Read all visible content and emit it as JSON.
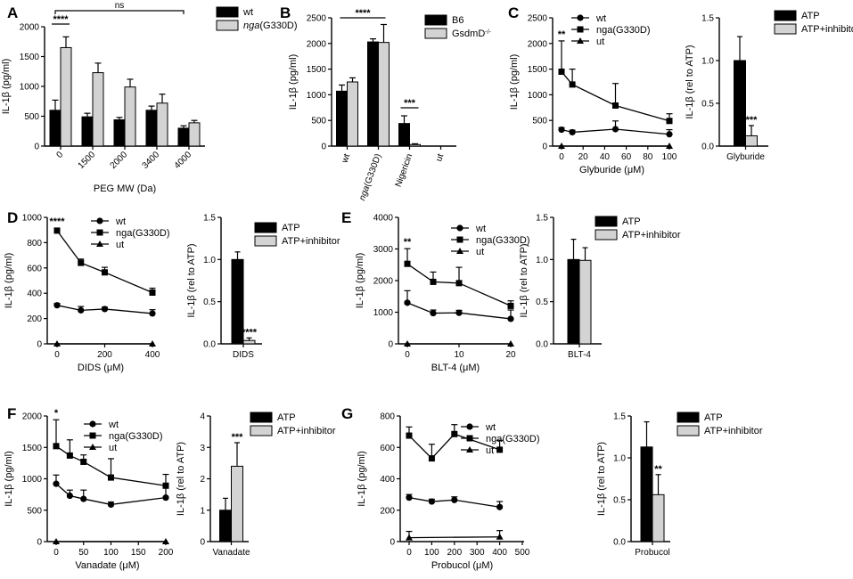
{
  "chart_data": [
    {
      "panel": "A",
      "type": "bar",
      "ylabel": "IL-1β (pg/ml)",
      "xlabel": "PEG MW (Da)",
      "ylim": [
        0,
        2000
      ],
      "yticks": [
        0,
        500,
        1000,
        1500,
        2000
      ],
      "categories": [
        "0",
        "1500",
        "2000",
        "3400",
        "4000"
      ],
      "series": [
        {
          "name": "wt",
          "color": "#000000",
          "values": [
            600,
            490,
            440,
            600,
            300
          ],
          "errors": [
            170,
            60,
            40,
            70,
            40
          ]
        },
        {
          "name": "nga(G330D)",
          "name_prefix": "nga",
          "name_suffix": "(G330D)",
          "color": "#d3d3d3",
          "values": [
            1650,
            1230,
            990,
            720,
            390
          ],
          "errors": [
            180,
            160,
            130,
            150,
            40
          ]
        }
      ],
      "annotations": [
        {
          "text": "****"
        },
        {
          "text": "ns"
        }
      ]
    },
    {
      "panel": "B",
      "type": "bar",
      "ylabel": "IL-1β (pg/ml)",
      "xlabel": "",
      "ylim": [
        0,
        2500
      ],
      "yticks": [
        0,
        500,
        1000,
        1500,
        2000,
        2500
      ],
      "categories": [
        "wt",
        "nga(G330D)",
        "Nigericin",
        "ut"
      ],
      "series": [
        {
          "name": "B6",
          "color": "#000000",
          "values": [
            1070,
            2030,
            440,
            0
          ],
          "errors": [
            120,
            60,
            150,
            0
          ]
        },
        {
          "name": "GsdmD-/-",
          "name_prefix": "GsdmD",
          "name_sup": "-/-",
          "color": "#d3d3d3",
          "values": [
            1250,
            2020,
            30,
            0
          ],
          "errors": [
            80,
            350,
            15,
            0
          ]
        }
      ],
      "annotations": [
        {
          "text": "****"
        },
        {
          "text": "***"
        }
      ]
    },
    {
      "panel": "C",
      "type": "line",
      "ylabel": "IL-1β (pg/ml)",
      "xlabel": "Glyburide (μM)",
      "xlim": [
        0,
        100
      ],
      "xticks": [
        0,
        20,
        40,
        60,
        80,
        100
      ],
      "ylim": [
        0,
        2500
      ],
      "yticks": [
        0,
        500,
        1000,
        1500,
        2000,
        2500
      ],
      "x": [
        0,
        10,
        50,
        100
      ],
      "series": [
        {
          "name": "wt",
          "marker": "circle",
          "values": [
            320,
            270,
            330,
            230
          ],
          "errors": [
            40,
            40,
            160,
            90
          ]
        },
        {
          "name": "nga(G330D)",
          "marker": "square",
          "values": [
            1450,
            1200,
            790,
            490
          ],
          "errors": [
            600,
            300,
            430,
            140
          ]
        },
        {
          "name": "ut",
          "marker": "triangle",
          "values": [
            0,
            null,
            null,
            0
          ],
          "errors": [
            0,
            0,
            0,
            0
          ]
        }
      ],
      "annotations": [
        {
          "text": "**"
        }
      ]
    },
    {
      "panel": "C-inset",
      "type": "bar",
      "ylabel": "IL-1β (rel to ATP)",
      "xlabel": "Glyburide",
      "ylim": [
        0,
        1.5
      ],
      "yticks": [
        0.0,
        0.5,
        1.0,
        1.5
      ],
      "series": [
        {
          "name": "ATP",
          "color": "#000000",
          "values": [
            1.0
          ],
          "errors": [
            0.28
          ]
        },
        {
          "name": "ATP+inhibitor",
          "color": "#d3d3d3",
          "values": [
            0.12
          ],
          "errors": [
            0.12
          ]
        }
      ],
      "annotations": [
        {
          "text": "***"
        }
      ]
    },
    {
      "panel": "D",
      "type": "line",
      "ylabel": "IL-1β (pg/ml)",
      "xlabel": "DIDS (μM)",
      "xlim": [
        0,
        400
      ],
      "xticks": [
        0,
        200,
        400
      ],
      "ylim": [
        0,
        1000
      ],
      "yticks": [
        0,
        200,
        400,
        600,
        800,
        1000
      ],
      "x": [
        0,
        100,
        200,
        400
      ],
      "series": [
        {
          "name": "wt",
          "marker": "circle",
          "values": [
            305,
            265,
            275,
            240
          ],
          "errors": [
            15,
            30,
            15,
            30
          ]
        },
        {
          "name": "nga(G330D)",
          "marker": "square",
          "values": [
            895,
            640,
            565,
            405
          ],
          "errors": [
            20,
            30,
            40,
            35
          ]
        },
        {
          "name": "ut",
          "marker": "triangle",
          "values": [
            0,
            null,
            null,
            0
          ],
          "errors": [
            0,
            0,
            0,
            0
          ]
        }
      ],
      "annotations": [
        {
          "text": "****"
        }
      ]
    },
    {
      "panel": "D-inset",
      "type": "bar",
      "ylabel": "IL-1β (rel to ATP)",
      "xlabel": "DIDS",
      "ylim": [
        0,
        1.5
      ],
      "yticks": [
        0.0,
        0.5,
        1.0,
        1.5
      ],
      "series": [
        {
          "name": "ATP",
          "color": "#000000",
          "values": [
            1.0
          ],
          "errors": [
            0.09
          ]
        },
        {
          "name": "ATP+inhibitor",
          "color": "#d3d3d3",
          "values": [
            0.04
          ],
          "errors": [
            0.03
          ]
        }
      ],
      "annotations": [
        {
          "text": "****"
        }
      ]
    },
    {
      "panel": "E",
      "type": "line",
      "ylabel": "IL-1β (pg/ml)",
      "xlabel": "BLT-4 (μM)",
      "xlim": [
        0,
        20
      ],
      "xticks": [
        0,
        10,
        20
      ],
      "ylim": [
        0,
        4000
      ],
      "yticks": [
        0,
        1000,
        2000,
        3000,
        4000
      ],
      "x": [
        0,
        5,
        10,
        20
      ],
      "series": [
        {
          "name": "wt",
          "marker": "circle",
          "values": [
            1300,
            970,
            980,
            790
          ],
          "errors": [
            380,
            100,
            80,
            280
          ]
        },
        {
          "name": "nga(G330D)",
          "marker": "square",
          "values": [
            2530,
            1960,
            1920,
            1200
          ],
          "errors": [
            480,
            310,
            500,
            160
          ]
        },
        {
          "name": "ut",
          "marker": "triangle",
          "values": [
            0,
            null,
            null,
            0
          ],
          "errors": [
            0,
            0,
            0,
            0
          ]
        }
      ],
      "annotations": [
        {
          "text": "**"
        }
      ]
    },
    {
      "panel": "E-inset",
      "type": "bar",
      "ylabel": "IL-1β (rel to ATP)",
      "xlabel": "BLT-4",
      "ylim": [
        0,
        1.5
      ],
      "yticks": [
        0.0,
        0.5,
        1.0,
        1.5
      ],
      "series": [
        {
          "name": "ATP",
          "color": "#000000",
          "values": [
            1.0
          ],
          "errors": [
            0.24
          ]
        },
        {
          "name": "ATP+inhibitor",
          "color": "#d3d3d3",
          "values": [
            0.99
          ],
          "errors": [
            0.15
          ]
        }
      ],
      "annotations": []
    },
    {
      "panel": "F",
      "type": "line",
      "ylabel": "IL-1β (pg/ml)",
      "xlabel": "Vanadate (μM)",
      "xlim": [
        0,
        200
      ],
      "xticks": [
        0,
        50,
        100,
        150,
        200
      ],
      "ylim": [
        0,
        2000
      ],
      "yticks": [
        0,
        500,
        1000,
        1500,
        2000
      ],
      "x": [
        0,
        25,
        50,
        100,
        200
      ],
      "series": [
        {
          "name": "wt",
          "marker": "circle",
          "values": [
            920,
            730,
            680,
            590,
            700
          ],
          "errors": [
            140,
            90,
            140,
            40,
            190
          ]
        },
        {
          "name": "nga(G330D)",
          "marker": "square",
          "values": [
            1520,
            1370,
            1270,
            1020,
            890
          ],
          "errors": [
            420,
            250,
            110,
            300,
            180
          ]
        },
        {
          "name": "ut",
          "marker": "triangle",
          "values": [
            0,
            null,
            null,
            null,
            0
          ],
          "errors": [
            0,
            0,
            0,
            0,
            0
          ]
        }
      ],
      "annotations": [
        {
          "text": "*"
        }
      ]
    },
    {
      "panel": "F-inset",
      "type": "bar",
      "ylabel": "IL-1β (rel to ATP)",
      "xlabel": "Vanadate",
      "ylim": [
        0,
        4
      ],
      "yticks": [
        0,
        1,
        2,
        3,
        4
      ],
      "series": [
        {
          "name": "ATP",
          "color": "#000000",
          "values": [
            1.0
          ],
          "errors": [
            0.38
          ]
        },
        {
          "name": "ATP+inhibitor",
          "color": "#d3d3d3",
          "values": [
            2.4
          ],
          "errors": [
            0.75
          ]
        }
      ],
      "annotations": [
        {
          "text": "***"
        }
      ]
    },
    {
      "panel": "G",
      "type": "line",
      "ylabel": "IL-1β (pg/ml)",
      "xlabel": "Probucol (μM)",
      "xlim": [
        0,
        500
      ],
      "xticks": [
        0,
        100,
        200,
        300,
        400,
        500
      ],
      "ylim": [
        0,
        800
      ],
      "yticks": [
        0,
        200,
        400,
        600,
        800
      ],
      "x": [
        0,
        100,
        200,
        400
      ],
      "series": [
        {
          "name": "wt",
          "marker": "circle",
          "values": [
            280,
            255,
            265,
            220
          ],
          "errors": [
            20,
            15,
            20,
            35
          ]
        },
        {
          "name": "nga(G330D)",
          "marker": "square",
          "values": [
            675,
            530,
            685,
            585
          ],
          "errors": [
            55,
            90,
            60,
            60
          ]
        },
        {
          "name": "ut",
          "marker": "triangle",
          "values": [
            25,
            null,
            null,
            30
          ],
          "errors": [
            40,
            0,
            0,
            40
          ]
        }
      ],
      "annotations": []
    },
    {
      "panel": "G-inset",
      "type": "bar",
      "ylabel": "IL-1β (rel to ATP)",
      "xlabel": "Probucol",
      "ylim": [
        0,
        1.5
      ],
      "yticks": [
        0.0,
        0.5,
        1.0,
        1.5
      ],
      "series": [
        {
          "name": "ATP",
          "color": "#000000",
          "values": [
            1.13
          ],
          "errors": [
            0.3
          ]
        },
        {
          "name": "ATP+inhibitor",
          "color": "#d3d3d3",
          "values": [
            0.56
          ],
          "errors": [
            0.24
          ]
        }
      ],
      "annotations": [
        {
          "text": "**"
        }
      ]
    }
  ]
}
